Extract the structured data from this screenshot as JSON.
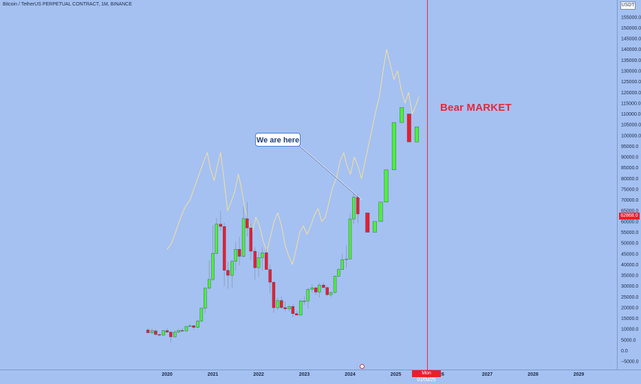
{
  "header": {
    "symbol": "Bitcoin / TetherUS PERPETUAL CONTRACT, 1M, BINANCE",
    "currency": "USDT"
  },
  "colors": {
    "background": "#a4c1f2",
    "up_candle": "#4df036",
    "down_candle": "#ef1c2b",
    "overlay_line": "#f3dc9c",
    "vertical_marker": "#e5273b"
  },
  "annotations": {
    "bear_market": "Bear MARKET",
    "we_are_here": "We are here"
  },
  "price_tag": "62868.0",
  "date_tag": "Mon 01/09/25",
  "chart_data": {
    "type": "candlestick",
    "title": "Bitcoin / TetherUS PERPETUAL CONTRACT, 1M, BINANCE",
    "xlabel": "",
    "ylabel": "",
    "x_ticks": [
      "2020",
      "2021",
      "2022",
      "2023",
      "2024",
      "2025",
      "26",
      "2027",
      "2028",
      "2029"
    ],
    "y_ticks": [
      "155000.0",
      "150000.0",
      "145000.0",
      "140000.0",
      "135000.0",
      "130000.0",
      "125000.0",
      "120000.0",
      "115000.0",
      "110000.0",
      "105000.0",
      "100000.0",
      "95000.0",
      "90000.0",
      "85000.0",
      "80000.0",
      "75000.0",
      "70000.0",
      "65000.0",
      "60000.0",
      "55000.0",
      "50000.0",
      "45000.0",
      "40000.0",
      "35000.0",
      "30000.0",
      "25000.0",
      "20000.0",
      "15000.0",
      "10000.0",
      "5000.0",
      "0.0",
      "−5000.0"
    ],
    "ylim": [
      -5000,
      157000
    ],
    "grid": false,
    "current_price": 62868.0,
    "marker_date": "Mon 01/09/25",
    "series": [
      {
        "candles": [
          {
            "t": 2019.58,
            "o": 9600,
            "h": 10400,
            "l": 8300,
            "c": 8300
          },
          {
            "t": 2019.67,
            "o": 8300,
            "h": 10300,
            "l": 7800,
            "c": 9200
          },
          {
            "t": 2019.75,
            "o": 9200,
            "h": 9500,
            "l": 7100,
            "c": 7500
          },
          {
            "t": 2019.83,
            "o": 7500,
            "h": 7800,
            "l": 6600,
            "c": 7200
          },
          {
            "t": 2019.92,
            "o": 7200,
            "h": 9600,
            "l": 6900,
            "c": 9300
          },
          {
            "t": 2020.0,
            "o": 9300,
            "h": 10500,
            "l": 8500,
            "c": 8600
          },
          {
            "t": 2020.08,
            "o": 8600,
            "h": 9200,
            "l": 3800,
            "c": 6400
          },
          {
            "t": 2020.17,
            "o": 6400,
            "h": 9500,
            "l": 6100,
            "c": 8600
          },
          {
            "t": 2020.25,
            "o": 8600,
            "h": 10000,
            "l": 8100,
            "c": 9400
          },
          {
            "t": 2020.33,
            "o": 9400,
            "h": 10400,
            "l": 8900,
            "c": 9100
          },
          {
            "t": 2020.42,
            "o": 9100,
            "h": 11400,
            "l": 9000,
            "c": 11300
          },
          {
            "t": 2020.5,
            "o": 11300,
            "h": 12400,
            "l": 11100,
            "c": 11600
          },
          {
            "t": 2020.58,
            "o": 11600,
            "h": 12000,
            "l": 9800,
            "c": 10800
          },
          {
            "t": 2020.67,
            "o": 10800,
            "h": 14000,
            "l": 10400,
            "c": 13800
          },
          {
            "t": 2020.75,
            "o": 13800,
            "h": 19800,
            "l": 13200,
            "c": 19700
          },
          {
            "t": 2020.83,
            "o": 19700,
            "h": 29300,
            "l": 17500,
            "c": 29000
          },
          {
            "t": 2020.92,
            "o": 29000,
            "h": 41900,
            "l": 28200,
            "c": 33100
          },
          {
            "t": 2021.0,
            "o": 33100,
            "h": 58300,
            "l": 32300,
            "c": 45200
          },
          {
            "t": 2021.08,
            "o": 45200,
            "h": 61700,
            "l": 45000,
            "c": 58800
          },
          {
            "t": 2021.17,
            "o": 58800,
            "h": 64800,
            "l": 55600,
            "c": 57700
          },
          {
            "t": 2021.25,
            "o": 57700,
            "h": 59500,
            "l": 30000,
            "c": 37300
          },
          {
            "t": 2021.33,
            "o": 37300,
            "h": 41300,
            "l": 28800,
            "c": 35000
          },
          {
            "t": 2021.42,
            "o": 35000,
            "h": 42000,
            "l": 29300,
            "c": 41500
          },
          {
            "t": 2021.5,
            "o": 41500,
            "h": 50500,
            "l": 37300,
            "c": 47100
          },
          {
            "t": 2021.58,
            "o": 47100,
            "h": 52900,
            "l": 39600,
            "c": 43800
          },
          {
            "t": 2021.67,
            "o": 43800,
            "h": 66900,
            "l": 43300,
            "c": 61300
          },
          {
            "t": 2021.75,
            "o": 61300,
            "h": 69000,
            "l": 53000,
            "c": 57000
          },
          {
            "t": 2021.83,
            "o": 57000,
            "h": 59000,
            "l": 42000,
            "c": 46200
          },
          {
            "t": 2021.92,
            "o": 46200,
            "h": 48000,
            "l": 33000,
            "c": 38500
          },
          {
            "t": 2022.0,
            "o": 38500,
            "h": 45800,
            "l": 34300,
            "c": 43200
          },
          {
            "t": 2022.08,
            "o": 43200,
            "h": 48200,
            "l": 37200,
            "c": 45500
          },
          {
            "t": 2022.17,
            "o": 45500,
            "h": 47400,
            "l": 37700,
            "c": 37700
          },
          {
            "t": 2022.25,
            "o": 37700,
            "h": 40000,
            "l": 26700,
            "c": 31800
          },
          {
            "t": 2022.33,
            "o": 31800,
            "h": 31900,
            "l": 17600,
            "c": 19900
          },
          {
            "t": 2022.42,
            "o": 19900,
            "h": 24700,
            "l": 18800,
            "c": 23300
          },
          {
            "t": 2022.5,
            "o": 23300,
            "h": 25200,
            "l": 19500,
            "c": 20000
          },
          {
            "t": 2022.58,
            "o": 20000,
            "h": 22800,
            "l": 18200,
            "c": 19400
          },
          {
            "t": 2022.67,
            "o": 19400,
            "h": 21100,
            "l": 18200,
            "c": 20500
          },
          {
            "t": 2022.75,
            "o": 20500,
            "h": 21500,
            "l": 15500,
            "c": 17200
          },
          {
            "t": 2022.83,
            "o": 17200,
            "h": 18400,
            "l": 16300,
            "c": 16500
          },
          {
            "t": 2022.92,
            "o": 16500,
            "h": 23900,
            "l": 16500,
            "c": 23100
          },
          {
            "t": 2023.0,
            "o": 23100,
            "h": 25200,
            "l": 21300,
            "c": 23100
          },
          {
            "t": 2023.08,
            "o": 23100,
            "h": 29000,
            "l": 19500,
            "c": 28500
          },
          {
            "t": 2023.17,
            "o": 28500,
            "h": 31000,
            "l": 26900,
            "c": 29200
          },
          {
            "t": 2023.25,
            "o": 29200,
            "h": 29800,
            "l": 25800,
            "c": 27200
          },
          {
            "t": 2023.33,
            "o": 27200,
            "h": 31400,
            "l": 24800,
            "c": 30500
          },
          {
            "t": 2023.42,
            "o": 30500,
            "h": 31800,
            "l": 28900,
            "c": 29300
          },
          {
            "t": 2023.5,
            "o": 29300,
            "h": 30100,
            "l": 25300,
            "c": 26000
          },
          {
            "t": 2023.58,
            "o": 26000,
            "h": 27500,
            "l": 24900,
            "c": 27000
          },
          {
            "t": 2023.67,
            "o": 27000,
            "h": 35000,
            "l": 26600,
            "c": 34600
          },
          {
            "t": 2023.75,
            "o": 34600,
            "h": 38400,
            "l": 34100,
            "c": 37700
          },
          {
            "t": 2023.83,
            "o": 37700,
            "h": 45000,
            "l": 37600,
            "c": 42300
          },
          {
            "t": 2023.92,
            "o": 42300,
            "h": 48900,
            "l": 38500,
            "c": 42600
          },
          {
            "t": 2024.0,
            "o": 42600,
            "h": 63900,
            "l": 42500,
            "c": 61200
          },
          {
            "t": 2024.08,
            "o": 61200,
            "h": 73800,
            "l": 59000,
            "c": 71300
          },
          {
            "t": 2024.17,
            "o": 71300,
            "h": 72800,
            "l": 59200,
            "c": 63500
          },
          {
            "t": 2024.38,
            "o": 64000,
            "h": 64000,
            "l": 55000,
            "c": 55000
          },
          {
            "t": 2024.54,
            "o": 55000,
            "h": 60000,
            "l": 55000,
            "c": 60000
          },
          {
            "t": 2024.67,
            "o": 60000,
            "h": 69000,
            "l": 60000,
            "c": 69000
          },
          {
            "t": 2024.79,
            "o": 69000,
            "h": 84000,
            "l": 69000,
            "c": 84000
          },
          {
            "t": 2024.96,
            "o": 84000,
            "h": 106000,
            "l": 84000,
            "c": 106000
          },
          {
            "t": 2025.13,
            "o": 106000,
            "h": 113000,
            "l": 106000,
            "c": 113000
          },
          {
            "t": 2025.29,
            "o": 110000,
            "h": 110000,
            "l": 97000,
            "c": 97000
          },
          {
            "t": 2025.46,
            "o": 97000,
            "h": 104000,
            "l": 97000,
            "c": 104000
          }
        ]
      },
      {
        "type": "line",
        "points": [
          [
            2020.0,
            47000
          ],
          [
            2020.1,
            50000
          ],
          [
            2020.2,
            56000
          ],
          [
            2020.3,
            62000
          ],
          [
            2020.4,
            67000
          ],
          [
            2020.5,
            70000
          ],
          [
            2020.6,
            76000
          ],
          [
            2020.7,
            82000
          ],
          [
            2020.8,
            88000
          ],
          [
            2020.88,
            92000
          ],
          [
            2020.95,
            84000
          ],
          [
            2021.03,
            79000
          ],
          [
            2021.1,
            86000
          ],
          [
            2021.17,
            92000
          ],
          [
            2021.24,
            80000
          ],
          [
            2021.32,
            65000
          ],
          [
            2021.4,
            69000
          ],
          [
            2021.48,
            74000
          ],
          [
            2021.56,
            82000
          ],
          [
            2021.62,
            76000
          ],
          [
            2021.7,
            66000
          ],
          [
            2021.78,
            60000
          ],
          [
            2021.86,
            55000
          ],
          [
            2021.94,
            62000
          ],
          [
            2022.02,
            58000
          ],
          [
            2022.1,
            51000
          ],
          [
            2022.18,
            46000
          ],
          [
            2022.26,
            53000
          ],
          [
            2022.34,
            60000
          ],
          [
            2022.42,
            64000
          ],
          [
            2022.5,
            58000
          ],
          [
            2022.58,
            49000
          ],
          [
            2022.66,
            44000
          ],
          [
            2022.74,
            40000
          ],
          [
            2022.82,
            47000
          ],
          [
            2022.9,
            55000
          ],
          [
            2022.98,
            58000
          ],
          [
            2023.06,
            54000
          ],
          [
            2023.14,
            58000
          ],
          [
            2023.22,
            63000
          ],
          [
            2023.3,
            66000
          ],
          [
            2023.38,
            60000
          ],
          [
            2023.46,
            62000
          ],
          [
            2023.54,
            69000
          ],
          [
            2023.62,
            76000
          ],
          [
            2023.7,
            80000
          ],
          [
            2023.78,
            88000
          ],
          [
            2023.86,
            92000
          ],
          [
            2023.93,
            86000
          ],
          [
            2024.01,
            82000
          ],
          [
            2024.09,
            90000
          ],
          [
            2024.17,
            86000
          ],
          [
            2024.25,
            80000
          ],
          [
            2024.33,
            88000
          ],
          [
            2024.41,
            96000
          ],
          [
            2024.49,
            104000
          ],
          [
            2024.57,
            112000
          ],
          [
            2024.64,
            118000
          ],
          [
            2024.72,
            130000
          ],
          [
            2024.8,
            140000
          ],
          [
            2024.88,
            133000
          ],
          [
            2024.96,
            126000
          ],
          [
            2025.04,
            130000
          ],
          [
            2025.12,
            121000
          ],
          [
            2025.2,
            115000
          ],
          [
            2025.28,
            120000
          ],
          [
            2025.36,
            110000
          ],
          [
            2025.44,
            114000
          ],
          [
            2025.5,
            118000
          ]
        ]
      }
    ]
  }
}
